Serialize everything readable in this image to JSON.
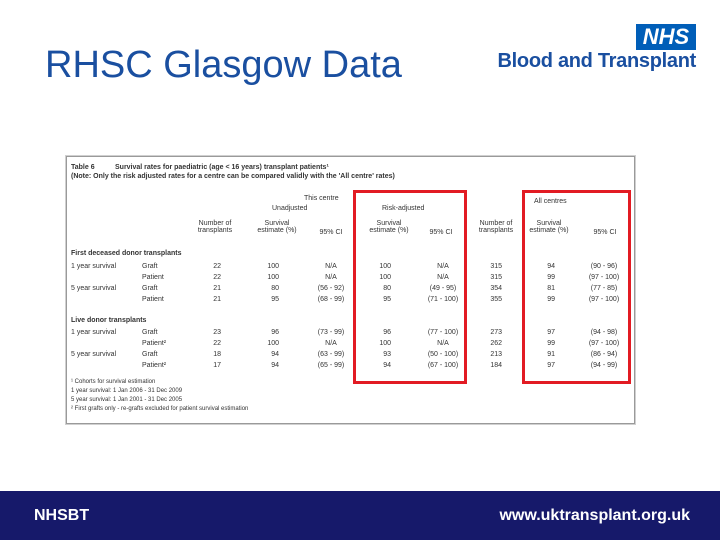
{
  "slide": {
    "title": "RHSC Glasgow Data",
    "logo_badge": "NHS",
    "logo_text": "Blood and Transplant",
    "footer_left": "NHSBT",
    "footer_right": "www.uktransplant.org.uk"
  },
  "table": {
    "caption_number": "Table 6",
    "caption_title": "Survival rates for paediatric (age < 16 years) transplant patients¹",
    "caption_note": "(Note: Only the risk adjusted rates for a centre can be compared validly with the 'All centre' rates)",
    "group_this_centre": "This centre",
    "group_unadjusted": "Unadjusted",
    "group_risk_adjusted": "Risk-adjusted",
    "group_all_centres": "All centres",
    "col_headers": {
      "n_transplants": "Number of transplants",
      "survival": "Survival estimate (%)",
      "ci": "95% CI"
    },
    "section1": "First deceased donor transplants",
    "section2": "Live donor transplants",
    "rows1": [
      [
        "1 year survival",
        "Graft",
        "22",
        "100",
        "N/A",
        "100",
        "N/A",
        "315",
        "94",
        "(90 - 96)"
      ],
      [
        "",
        "Patient",
        "22",
        "100",
        "N/A",
        "100",
        "N/A",
        "315",
        "99",
        "(97 - 100)"
      ],
      [
        "5 year survival",
        "Graft",
        "21",
        "80",
        "(56 - 92)",
        "80",
        "(49 - 95)",
        "354",
        "81",
        "(77 - 85)"
      ],
      [
        "",
        "Patient",
        "21",
        "95",
        "(68 - 99)",
        "95",
        "(71 - 100)",
        "355",
        "99",
        "(97 - 100)"
      ]
    ],
    "rows2": [
      [
        "1 year survival",
        "Graft",
        "23",
        "96",
        "(73 - 99)",
        "96",
        "(77 - 100)",
        "273",
        "97",
        "(94 - 98)"
      ],
      [
        "",
        "Patient²",
        "22",
        "100",
        "N/A",
        "100",
        "N/A",
        "262",
        "99",
        "(97 - 100)"
      ],
      [
        "5 year survival",
        "Graft",
        "18",
        "94",
        "(63 - 99)",
        "93",
        "(50 - 100)",
        "213",
        "91",
        "(86 - 94)"
      ],
      [
        "",
        "Patient²",
        "17",
        "94",
        "(65 - 99)",
        "94",
        "(67 - 100)",
        "184",
        "97",
        "(94 - 99)"
      ]
    ],
    "footnotes": [
      "¹ Cohorts for survival estimation",
      "1 year survival: 1 Jan 2006 - 31 Dec 2009",
      "5 year survival: 1 Jan 2001 - 31 Dec 2005",
      "² First grafts only - re-grafts excluded for patient survival estimation"
    ]
  },
  "colors": {
    "title": "#1a4fa0",
    "nhs_blue": "#005eb8",
    "footer_bg": "#16196a",
    "highlight_red": "#e21b23"
  }
}
